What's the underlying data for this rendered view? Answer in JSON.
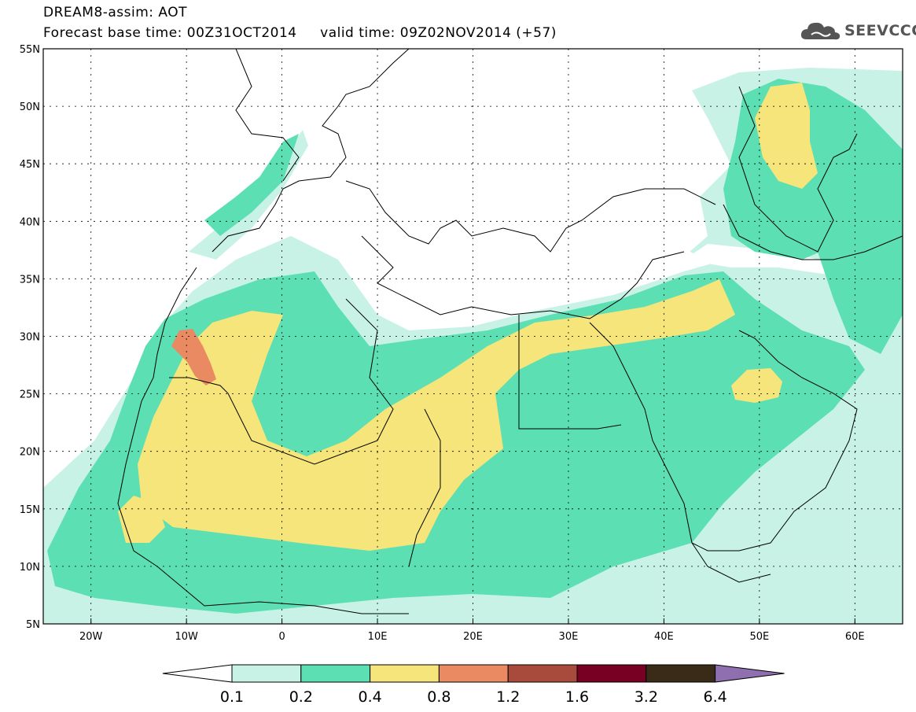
{
  "header": {
    "title_line1": "DREAM8-assim: AOT",
    "title_line2": "Forecast base time: 00Z31OCT2014     valid time: 09Z02NOV2014 (+57)"
  },
  "logo": {
    "text": "SEEVCCC",
    "icon": "cloud-icon"
  },
  "map": {
    "lat_ticks": [
      "55N",
      "50N",
      "45N",
      "40N",
      "35N",
      "30N",
      "25N",
      "20N",
      "15N",
      "10N",
      "5N"
    ],
    "lon_ticks": [
      "20W",
      "10W",
      "0",
      "10E",
      "20E",
      "30E",
      "40E",
      "50E",
      "60E"
    ],
    "lat_range": [
      5,
      55
    ],
    "lon_range": [
      -25,
      65
    ]
  },
  "colorbar": {
    "labels": [
      "0.1",
      "0.2",
      "0.4",
      "0.8",
      "1.2",
      "1.6",
      "3.2",
      "6.4"
    ],
    "colors": [
      "#ffffff",
      "#c8f2e6",
      "#5ddfb4",
      "#f5e57a",
      "#e98a63",
      "#a94b3c",
      "#780022",
      "#3a2a18",
      "#8f6fb0"
    ]
  }
}
